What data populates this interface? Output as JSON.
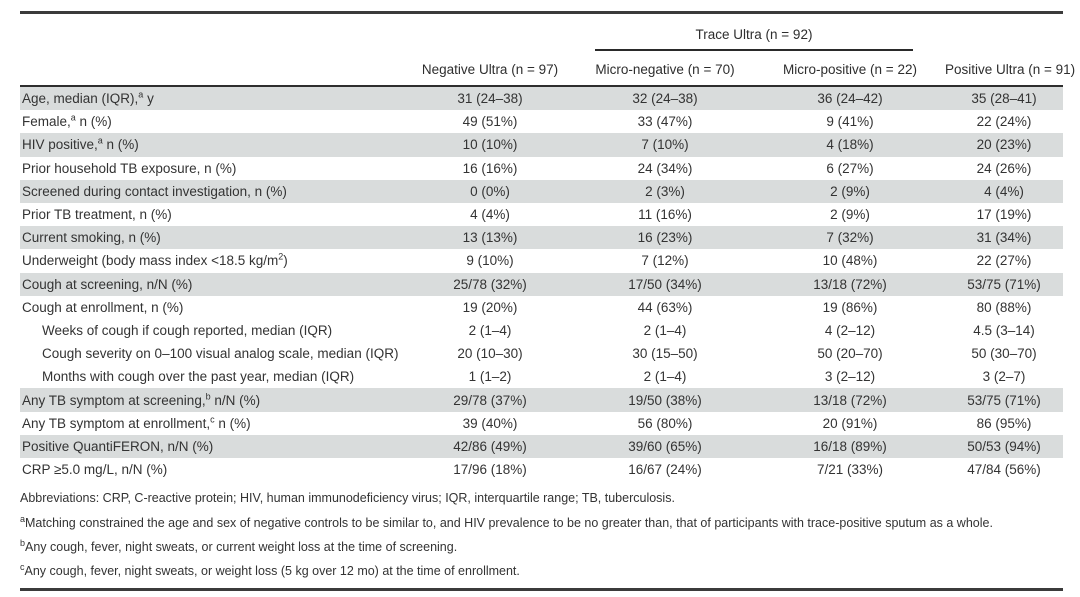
{
  "table": {
    "group_header": {
      "label": "Trace Ultra (n = 92)"
    },
    "columns": [
      "Negative Ultra (n = 97)",
      "Micro-negative (n = 70)",
      "Micro-positive (n = 22)",
      "Positive Ultra (n = 91)"
    ],
    "rows": [
      {
        "label_pre": "Age, median (IQR),",
        "sup": "a",
        "label_post": " y",
        "indent": false,
        "shaded": true,
        "values": [
          "31 (24–38)",
          "32 (24–38)",
          "36 (24–42)",
          "35 (28–41)"
        ]
      },
      {
        "label_pre": "Female,",
        "sup": "a",
        "label_post": " n (%)",
        "indent": false,
        "shaded": false,
        "values": [
          "49 (51%)",
          "33 (47%)",
          "9 (41%)",
          "22 (24%)"
        ]
      },
      {
        "label_pre": "HIV positive,",
        "sup": "a",
        "label_post": " n (%)",
        "indent": false,
        "shaded": true,
        "values": [
          "10 (10%)",
          "7 (10%)",
          "4 (18%)",
          "20 (23%)"
        ]
      },
      {
        "label_pre": "Prior household TB exposure, n (%)",
        "sup": "",
        "label_post": "",
        "indent": false,
        "shaded": false,
        "values": [
          "16 (16%)",
          "24 (34%)",
          "6 (27%)",
          "24 (26%)"
        ]
      },
      {
        "label_pre": "Screened during contact investigation, n (%)",
        "sup": "",
        "label_post": "",
        "indent": false,
        "shaded": true,
        "values": [
          "0 (0%)",
          "2 (3%)",
          "2 (9%)",
          "4 (4%)"
        ]
      },
      {
        "label_pre": "Prior TB treatment, n (%)",
        "sup": "",
        "label_post": "",
        "indent": false,
        "shaded": false,
        "values": [
          "4 (4%)",
          "11 (16%)",
          "2 (9%)",
          "17 (19%)"
        ]
      },
      {
        "label_pre": "Current smoking, n (%)",
        "sup": "",
        "label_post": "",
        "indent": false,
        "shaded": true,
        "values": [
          "13 (13%)",
          "16 (23%)",
          "7 (32%)",
          "31 (34%)"
        ]
      },
      {
        "label_pre": "Underweight (body mass index <18.5 kg/m",
        "sup": "2",
        "label_post": ")",
        "indent": false,
        "shaded": false,
        "values": [
          "9 (10%)",
          "7 (12%)",
          "10 (48%)",
          "22 (27%)"
        ]
      },
      {
        "label_pre": "Cough at screening, n/N (%)",
        "sup": "",
        "label_post": "",
        "indent": false,
        "shaded": true,
        "values": [
          "25/78 (32%)",
          "17/50 (34%)",
          "13/18 (72%)",
          "53/75 (71%)"
        ]
      },
      {
        "label_pre": "Cough at enrollment, n (%)",
        "sup": "",
        "label_post": "",
        "indent": false,
        "shaded": false,
        "values": [
          "19 (20%)",
          "44 (63%)",
          "19 (86%)",
          "80 (88%)"
        ]
      },
      {
        "label_pre": "Weeks of cough if cough reported, median (IQR)",
        "sup": "",
        "label_post": "",
        "indent": true,
        "shaded": false,
        "values": [
          "2 (1–4)",
          "2 (1–4)",
          "4 (2–12)",
          "4.5 (3–14)"
        ]
      },
      {
        "label_pre": "Cough severity on 0–100 visual analog scale, median (IQR)",
        "sup": "",
        "label_post": "",
        "indent": true,
        "shaded": false,
        "values": [
          "20 (10–30)",
          "30 (15–50)",
          "50 (20–70)",
          "50 (30–70)"
        ]
      },
      {
        "label_pre": "Months with cough over the past year, median (IQR)",
        "sup": "",
        "label_post": "",
        "indent": true,
        "shaded": false,
        "values": [
          "1 (1–2)",
          "2 (1–4)",
          "3 (2–12)",
          "3 (2–7)"
        ]
      },
      {
        "label_pre": "Any TB symptom at screening,",
        "sup": "b",
        "label_post": " n/N (%)",
        "indent": false,
        "shaded": true,
        "values": [
          "29/78 (37%)",
          "19/50 (38%)",
          "13/18 (72%)",
          "53/75 (71%)"
        ]
      },
      {
        "label_pre": "Any TB symptom at enrollment,",
        "sup": "c",
        "label_post": " n (%)",
        "indent": false,
        "shaded": false,
        "values": [
          "39 (40%)",
          "56 (80%)",
          "20 (91%)",
          "86 (95%)"
        ]
      },
      {
        "label_pre": "Positive QuantiFERON, n/N (%)",
        "sup": "",
        "label_post": "",
        "indent": false,
        "shaded": true,
        "values": [
          "42/86 (49%)",
          "39/60 (65%)",
          "16/18 (89%)",
          "50/53 (94%)"
        ]
      },
      {
        "label_pre": "CRP ≥5.0 mg/L, n/N (%)",
        "sup": "",
        "label_post": "",
        "indent": false,
        "shaded": false,
        "values": [
          "17/96 (18%)",
          "16/67 (24%)",
          "7/21 (33%)",
          "47/84 (56%)"
        ]
      }
    ]
  },
  "footnotes": {
    "abbreviations": "Abbreviations: CRP, C-reactive protein; HIV, human immunodeficiency virus; IQR, interquartile range; TB, tuberculosis.",
    "notes": [
      {
        "sup": "a",
        "text": "Matching constrained the age and sex of negative controls to be similar to, and HIV prevalence to be no greater than, that of participants with trace-positive sputum as a whole."
      },
      {
        "sup": "b",
        "text": "Any cough, fever, night sweats, or current weight loss at the time of screening."
      },
      {
        "sup": "c",
        "text": "Any cough, fever, night sweats, or weight loss (5 kg over 12 mo) at the time of enrollment."
      }
    ]
  },
  "colors": {
    "stripe": "#d9dcdc",
    "rule": "#2e2e2e",
    "text": "#333333"
  }
}
